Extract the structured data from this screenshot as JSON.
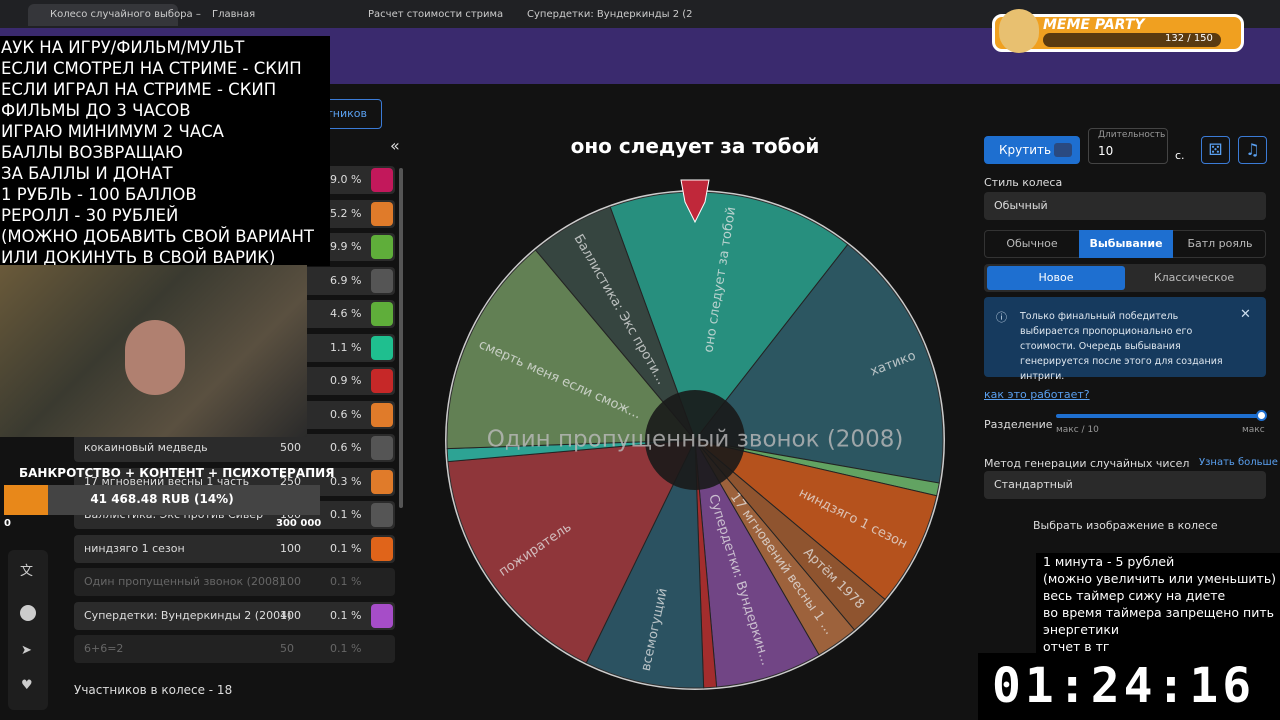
{
  "browser": {
    "tabs": [
      "Колесо случайного выбора –",
      "Главная",
      "Расчет стоимости стрима",
      "Супердетки: Вундеркинды 2 (2"
    ]
  },
  "meme_party": {
    "title": "MEME PARTY",
    "progress": "132 / 150"
  },
  "stream_overlay": {
    "rules": [
      "АУК НА ИГРУ/ФИЛЬМ/МУЛЬТ",
      "ЕСЛИ СМОТРЕЛ НА СТРИМЕ - СКИП",
      "ЕСЛИ ИГРАЛ НА СТРИМЕ - СКИП",
      "ФИЛЬМЫ ДО 3 ЧАСОВ",
      "ИГРАЮ МИНИМУМ 2 ЧАСА",
      "БАЛЛЫ ВОЗВРАЩАЮ",
      "ЗА БАЛЛЫ И ДОНАТ",
      "1 РУБЛЬ - 100 БАЛЛОВ",
      "РЕРОЛЛ - 30 РУБЛЕЙ",
      "(МОЖНО ДОБАВИТЬ СВОЙ ВАРИАНТ",
      "ИЛИ ДОКИНУТЬ В СВОЙ ВАРИК)"
    ],
    "donation_goal": {
      "title": "БАНКРОТСТВО + КОНТЕНТ + ПСИХОТЕРАПИЯ",
      "amount": "41 468.48 RUB (14%)",
      "min": "0",
      "max": "300 000"
    },
    "timer_rules": [
      "1 минута - 5 рублей",
      "(можно увеличить или уменьшить)",
      "весь таймер сижу на диете",
      "во время таймера запрещено пить",
      "энергетики",
      "отчет в тг"
    ],
    "timer": "01:24:16"
  },
  "sidebar": {
    "button": "тников",
    "collapse": "«",
    "rows": [
      {
        "percent": "9.0 %",
        "color": "#c2185b"
      },
      {
        "percent": "5.2 %",
        "color": "#e07b2a"
      },
      {
        "percent": "9.9 %",
        "color": "#5fae3a"
      },
      {
        "percent": "6.9 %",
        "color": "#555555"
      },
      {
        "percent": "4.6 %",
        "color": "#5fae3a"
      },
      {
        "percent": "1.1 %",
        "color": "#1fbf8f"
      },
      {
        "percent": "0.9 %",
        "color": "#c62828"
      },
      {
        "percent": "0.6 %",
        "color": "#e07b2a"
      },
      {
        "name": "кокаиновый медведь",
        "amount": "500",
        "percent": "0.6 %",
        "color": "#555555"
      },
      {
        "name": "17 мгновений весны 1 часть",
        "amount": "250",
        "percent": "0.3 %",
        "color": "#e07b2a"
      },
      {
        "name": "Баллистика: Экс против Сивер",
        "amount": "100",
        "percent": "0.1 %",
        "color": "#555555"
      },
      {
        "name": "ниндзяго 1 сезон",
        "amount": "100",
        "percent": "0.1 %",
        "color": "#e0641a"
      },
      {
        "name": "Один пропущенный звонок (2008)",
        "amount": "100",
        "percent": "0.1 %",
        "struck": true
      },
      {
        "name": "Супердетки: Вундеркинды 2 (2004)",
        "amount": "100",
        "percent": "0.1 %",
        "color": "#a64dc8"
      },
      {
        "name": "6+6=2",
        "amount": "50",
        "percent": "0.1 %",
        "struck": true
      }
    ],
    "participants": "Участников в колесе - 18"
  },
  "wheel": {
    "title": "оно следует за тобой",
    "center_label": "Один пропущенный звонок (2008)",
    "slice_labels": [
      "оно следует за тобой",
      "хатико",
      "ниндзяго 1 сезон",
      "Артём 1978",
      "17 мгновений весны 1 ...",
      "Супердетки: Вундеркин...",
      "всемогущий",
      "пожиратель",
      "смерть меня если смож...",
      "Баллистика: Экс проти..."
    ]
  },
  "controls": {
    "spin": "Крутить",
    "duration_label": "Длительность",
    "duration": "10",
    "duration_unit": "с.",
    "style_label": "Стиль колеса",
    "style": "Обычный",
    "modes": [
      "Обычное",
      "Выбывание",
      "Батл рояль"
    ],
    "submodes": [
      "Новое",
      "Классическое"
    ],
    "info": "Только финальный победитель выбирается пропорционально его стоимости. Очередь выбывания генерируется после этого для создания интриги.",
    "how_link": "как это работает?",
    "split_label": "Разделение",
    "split_min": "макс / 10",
    "split_max": "макс",
    "rng_label": "Метод генерации случайных чисел",
    "rng_link": "Узнать больше",
    "rng": "Стандартный",
    "image": "Выбрать изображение в колесе"
  }
}
